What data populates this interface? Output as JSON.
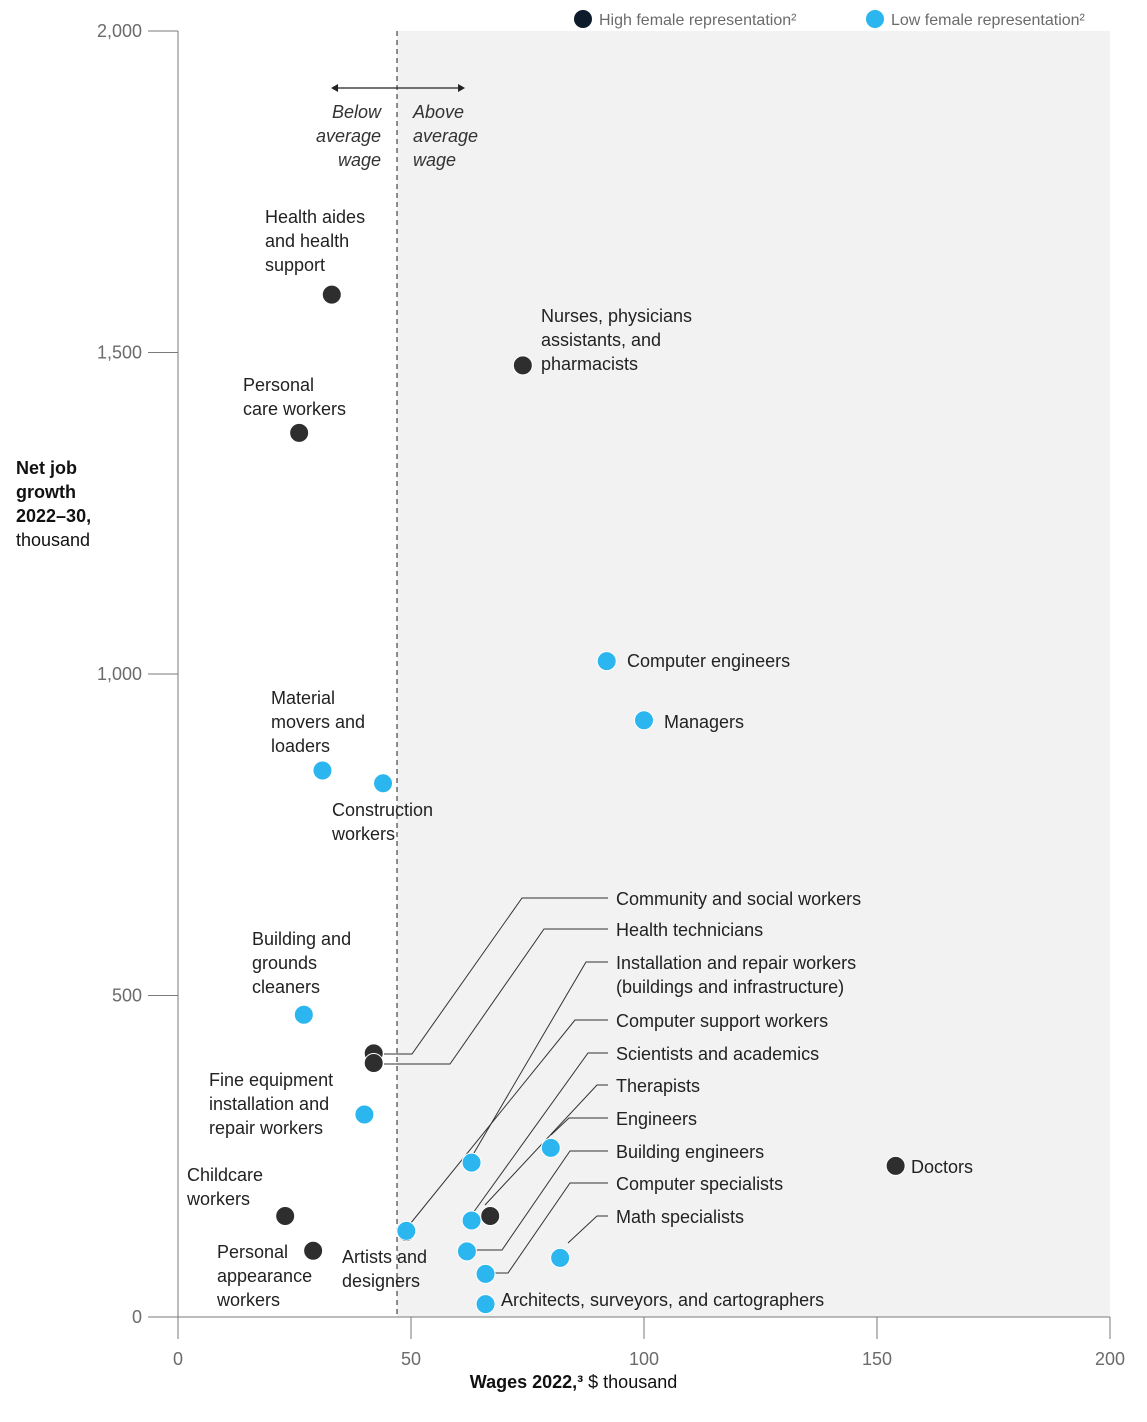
{
  "chart_data": {
    "type": "scatter",
    "xlim": [
      0,
      200
    ],
    "ylim": [
      0,
      2000
    ],
    "x_ticks": [
      "0",
      "50",
      "100",
      "150",
      "200"
    ],
    "y_ticks": [
      "0",
      "500",
      "1,000",
      "1,500",
      "2,000"
    ],
    "xlabel_bold": "Wages 2022,³",
    "xlabel_rest": " $ thousand",
    "ylabel_bold": [
      "Net job",
      "growth",
      "2022–30,"
    ],
    "ylabel_rest": "thousand",
    "average_wage_x": 47,
    "shaded_region": "above average wage",
    "annotation_below": [
      "Below",
      "average",
      "wage"
    ],
    "annotation_above": [
      "Above",
      "average",
      "wage"
    ],
    "legend_position": "top-right",
    "colors": {
      "high": "#2e2e2e",
      "low": "#2bb6ef",
      "shade": "#f2f2f2",
      "axis": "#7a7a7a"
    },
    "series": [
      {
        "name": "High female representation²",
        "key": "high"
      },
      {
        "name": "Low female representation²",
        "key": "low"
      }
    ],
    "points": [
      {
        "label": [
          "Health aides",
          "and health",
          "support"
        ],
        "x": 33,
        "y": 1590,
        "group": "high"
      },
      {
        "label": [
          "Nurses, physicians",
          "assistants, and",
          "pharmacists"
        ],
        "x": 74,
        "y": 1480,
        "group": "high"
      },
      {
        "label": [
          "Personal",
          "care workers"
        ],
        "x": 26,
        "y": 1375,
        "group": "high"
      },
      {
        "label": [
          "Computer engineers"
        ],
        "x": 92,
        "y": 1020,
        "group": "low"
      },
      {
        "label": [
          "Managers"
        ],
        "x": 100,
        "y": 928,
        "group": "low"
      },
      {
        "label": [
          "Material",
          "movers and",
          "loaders"
        ],
        "x": 31,
        "y": 850,
        "group": "low"
      },
      {
        "label": [
          "Construction",
          "workers"
        ],
        "x": 44,
        "y": 830,
        "group": "low"
      },
      {
        "label": [
          "Building and",
          "grounds",
          "cleaners"
        ],
        "x": 27,
        "y": 470,
        "group": "low"
      },
      {
        "label": [
          "Community and social workers"
        ],
        "x": 42,
        "y": 410,
        "group": "high"
      },
      {
        "label": [
          "Health technicians"
        ],
        "x": 42,
        "y": 395,
        "group": "high"
      },
      {
        "label": [
          "Fine equipment",
          "installation and",
          "repair workers"
        ],
        "x": 40,
        "y": 315,
        "group": "low"
      },
      {
        "label": [
          "Installation and repair workers",
          "(buildings and infrastructure)"
        ],
        "x": 63,
        "y": 240,
        "group": "low"
      },
      {
        "label": [
          "Computer support workers"
        ],
        "x": 80,
        "y": 263,
        "group": "low"
      },
      {
        "label": [
          "Doctors"
        ],
        "x": 154,
        "y": 235,
        "group": "high"
      },
      {
        "label": [
          "Scientists and academics"
        ],
        "x": 67,
        "y": 157,
        "group": "high"
      },
      {
        "label": [
          "Childcare",
          "workers"
        ],
        "x": 23,
        "y": 157,
        "group": "high"
      },
      {
        "label": [
          "Therapists"
        ],
        "x": 63,
        "y": 150,
        "group": "low"
      },
      {
        "label": [
          "Artists and",
          "designers"
        ],
        "x": 49,
        "y": 132,
        "group": "high"
      },
      {
        "label": [
          "Building engineers"
        ],
        "x": 49,
        "y": 134,
        "group": "low"
      },
      {
        "label": [
          "Personal",
          "appearance",
          "workers"
        ],
        "x": 29,
        "y": 103,
        "group": "high"
      },
      {
        "label": [
          "Engineers"
        ],
        "x": 62,
        "y": 102,
        "group": "low"
      },
      {
        "label": [
          "Math specialists"
        ],
        "x": 82,
        "y": 92,
        "group": "low"
      },
      {
        "label": [
          "Computer specialists"
        ],
        "x": 66,
        "y": 67,
        "group": "low"
      },
      {
        "label": [
          "Architects, surveyors, and cartographers"
        ],
        "x": 66,
        "y": 20,
        "group": "low"
      }
    ]
  }
}
